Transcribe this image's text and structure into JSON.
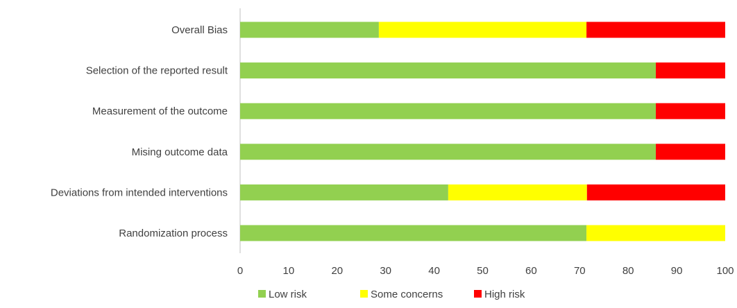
{
  "chart_data": {
    "type": "bar",
    "orientation": "horizontal",
    "stacked": true,
    "title": "",
    "xlabel": "",
    "ylabel": "",
    "xlim": [
      0,
      100
    ],
    "xticks": [
      0,
      10,
      20,
      30,
      40,
      50,
      60,
      70,
      80,
      90,
      100
    ],
    "grid": false,
    "legend_position": "bottom",
    "categories": [
      "Overall Bias",
      "Selection of the reported result",
      "Measurement of the outcome",
      "Mising outcome data",
      "Deviations from intended interventions",
      "Randomization process"
    ],
    "series": [
      {
        "name": "Low risk",
        "color": "#92d050",
        "values": [
          28.6,
          85.7,
          85.7,
          85.7,
          42.9,
          71.4
        ]
      },
      {
        "name": "Some concerns",
        "color": "#ffff00",
        "values": [
          42.8,
          0,
          0,
          0,
          28.6,
          28.6
        ]
      },
      {
        "name": "High risk",
        "color": "#ff0000",
        "values": [
          28.6,
          14.3,
          14.3,
          14.3,
          28.5,
          0
        ]
      }
    ]
  }
}
